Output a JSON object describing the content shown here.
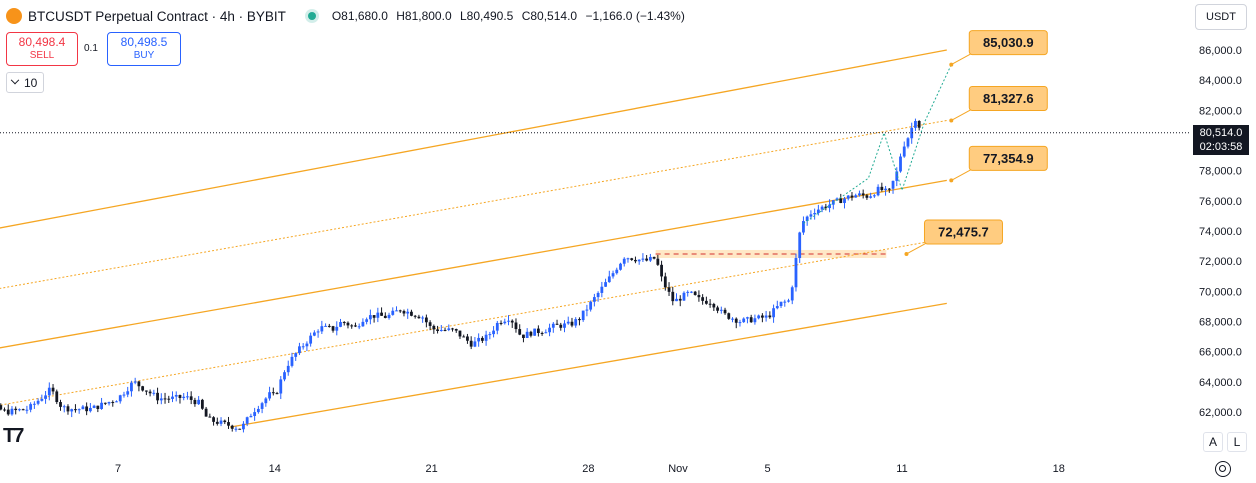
{
  "header": {
    "symbol": "BTCUSDT Perpetual Contract · 4h · BYBIT",
    "ohlc": {
      "open": "O81,680.0",
      "high": "H81,800.0",
      "low": "L80,490.5",
      "close": "C80,514.0",
      "change": "−1,166.0 (−1.43%)"
    }
  },
  "trade": {
    "sell_price": "80,498.4",
    "sell_label": "SELL",
    "spread": "0.1",
    "buy_price": "80,498.5",
    "buy_label": "BUY",
    "quantity": "10"
  },
  "currency": "USDT",
  "price_tag": {
    "price": "80,514.0",
    "countdown": "02:03:58"
  },
  "scale_buttons": {
    "auto": "A",
    "log": "L"
  },
  "icons": {
    "symbol": "bitcoin-icon",
    "live": "live-status-icon",
    "settings": "gear-icon",
    "logo": "tradingview-logo-icon"
  },
  "colors": {
    "up": "#2962ff",
    "down": "#131722",
    "channel": "#f5a623",
    "forecast": "#22ab94",
    "label_bg": "#ffcc80",
    "label_border": "#f5a623"
  },
  "chart_data": {
    "type": "candlestick",
    "y_scale": "linear",
    "ylim": [
      60800,
      87200
    ],
    "y_ticks": [
      "62,000.0",
      "64,000.0",
      "66,000.0",
      "68,000.0",
      "70,000.0",
      "72,000.0",
      "74,000.0",
      "76,000.0",
      "78,000.0",
      "80,000.0",
      "82,000.0",
      "84,000.0",
      "86,000.0"
    ],
    "y_tick_values": [
      62000,
      64000,
      66000,
      68000,
      70000,
      72000,
      74000,
      76000,
      78000,
      80000,
      82000,
      84000,
      86000
    ],
    "x_ticks": [
      {
        "label": "7",
        "t": 0
      },
      {
        "label": "14",
        "t": 7
      },
      {
        "label": "21",
        "t": 14
      },
      {
        "label": "28",
        "t": 21
      },
      {
        "label": "Nov",
        "t": 25
      },
      {
        "label": "5",
        "t": 29
      },
      {
        "label": "11",
        "t": 35
      },
      {
        "label": "18",
        "t": 42
      }
    ],
    "last_price": 80514.0,
    "path": [
      [
        -7.4,
        61800
      ],
      [
        -6.5,
        62000
      ],
      [
        -5.8,
        62500
      ],
      [
        -5,
        62000
      ],
      [
        -4,
        62200
      ],
      [
        -3,
        63500
      ],
      [
        -2.5,
        62300
      ],
      [
        -2,
        62200
      ],
      [
        -1.2,
        62200
      ],
      [
        0,
        62900
      ],
      [
        0.7,
        64000
      ],
      [
        1.3,
        63400
      ],
      [
        1.8,
        62900
      ],
      [
        2.5,
        62900
      ],
      [
        3,
        63000
      ],
      [
        3.6,
        62600
      ],
      [
        4,
        61500
      ],
      [
        5,
        61100
      ],
      [
        5.5,
        60900
      ],
      [
        6,
        62000
      ],
      [
        6.8,
        63200
      ],
      [
        7,
        63000
      ],
      [
        7.5,
        65000
      ],
      [
        8,
        66000
      ],
      [
        8.5,
        66800
      ],
      [
        9,
        67600
      ],
      [
        9.6,
        67500
      ],
      [
        10,
        68000
      ],
      [
        10.6,
        67600
      ],
      [
        11,
        68300
      ],
      [
        11.5,
        68400
      ],
      [
        12,
        68300
      ],
      [
        12.6,
        68800
      ],
      [
        13,
        68600
      ],
      [
        13.6,
        68300
      ],
      [
        14,
        67500
      ],
      [
        15,
        67400
      ],
      [
        15.8,
        66500
      ],
      [
        16.5,
        67000
      ],
      [
        17,
        68000
      ],
      [
        17.5,
        68300
      ],
      [
        18,
        67000
      ],
      [
        18.5,
        67300
      ],
      [
        19,
        67400
      ],
      [
        19.5,
        67700
      ],
      [
        20.2,
        67800
      ],
      [
        20.6,
        68200
      ],
      [
        21,
        69000
      ],
      [
        21.5,
        70000
      ],
      [
        22,
        71000
      ],
      [
        22.6,
        72300
      ],
      [
        23,
        72200
      ],
      [
        23.5,
        72000
      ],
      [
        24,
        72200
      ],
      [
        24.3,
        70700
      ],
      [
        24.8,
        69300
      ],
      [
        25.5,
        69900
      ],
      [
        26,
        69400
      ],
      [
        26.5,
        69300
      ],
      [
        27,
        68500
      ],
      [
        27.8,
        68000
      ],
      [
        28.5,
        68200
      ],
      [
        29,
        68300
      ],
      [
        29.6,
        69200
      ],
      [
        30,
        69400
      ],
      [
        30.5,
        74500
      ],
      [
        31,
        75300
      ],
      [
        31.5,
        75600
      ],
      [
        32,
        75900
      ],
      [
        32.5,
        76200
      ],
      [
        33,
        76400
      ],
      [
        33.5,
        76300
      ],
      [
        34,
        76800
      ],
      [
        34.4,
        76500
      ],
      [
        34.8,
        78000
      ],
      [
        35,
        79500
      ],
      [
        35.3,
        80300
      ],
      [
        35.6,
        81500
      ],
      [
        35.9,
        80514
      ]
    ],
    "series": [
      {
        "name": "85,030.9",
        "kind": "target_label",
        "value": 85030.9,
        "t": 37.2
      },
      {
        "name": "81,327.6",
        "kind": "target_label",
        "value": 81327.6,
        "t": 37.2
      },
      {
        "name": "77,354.9",
        "kind": "target_label",
        "value": 77354.9,
        "t": 37.2
      },
      {
        "name": "72,475.7",
        "kind": "target_label",
        "value": 72475.7,
        "t": 35.2
      }
    ],
    "channel_lines": [
      {
        "style": "solid",
        "from": [
          -6,
          74000
        ],
        "to": [
          37,
          86000
        ]
      },
      {
        "style": "dotted",
        "from": [
          -6,
          70000
        ],
        "to": [
          37,
          81327.6
        ]
      },
      {
        "style": "solid",
        "from": [
          -7,
          65800
        ],
        "to": [
          37,
          77354.9
        ]
      },
      {
        "style": "dotted",
        "from": [
          -7,
          62000
        ],
        "to": [
          37,
          73500
        ]
      },
      {
        "style": "solid",
        "from": [
          5,
          61000
        ],
        "to": [
          37,
          69200
        ]
      }
    ],
    "horizontal_level": {
      "value": 72475.7,
      "from_t": 24,
      "to_t": 34.3
    },
    "forecast_path": [
      [
        30.6,
        74500
      ],
      [
        33.5,
        77500
      ],
      [
        34.2,
        80500
      ],
      [
        35,
        76700
      ],
      [
        36,
        81200
      ],
      [
        37.2,
        85030.9
      ]
    ],
    "grid": false,
    "legend": "none"
  }
}
